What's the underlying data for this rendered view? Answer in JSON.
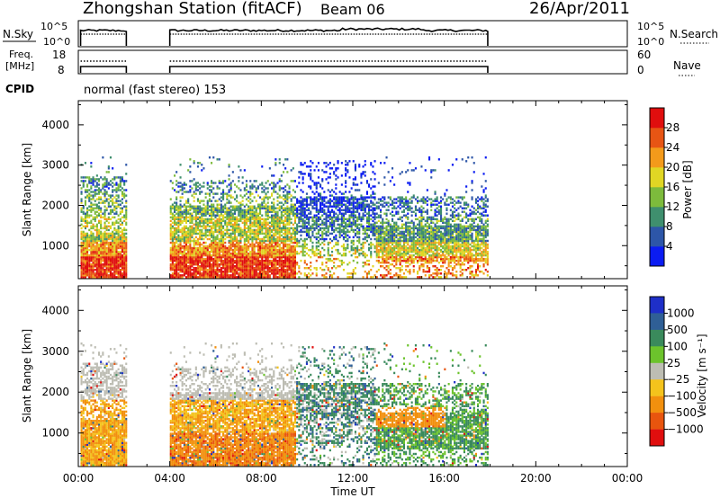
{
  "header": {
    "station": "Zhongshan Station (fitACF)",
    "beam": "Beam 06",
    "date": "26/Apr/2011"
  },
  "chart_data": [
    {
      "type": "line",
      "panel": "nsky-nsearch",
      "left_label": "N.Sky",
      "right_label": "N.Search",
      "left_ticks": [
        "10^5",
        "10^0"
      ],
      "right_ticks": [
        "10^5",
        "10^0"
      ],
      "x_range_hours": [
        0,
        24
      ],
      "data_intervals_hours": [
        [
          0.1,
          2.1
        ],
        [
          4.0,
          17.9
        ]
      ]
    },
    {
      "type": "line",
      "panel": "freq-nave",
      "left_label_lines": [
        "Freq.",
        "[MHz]"
      ],
      "right_label": "Nave",
      "left_ticks": [
        "18",
        "8"
      ],
      "right_ticks": [
        "60",
        "0"
      ],
      "x_range_hours": [
        0,
        24
      ],
      "data_intervals_hours": [
        [
          0.1,
          2.1
        ],
        [
          4.0,
          17.9
        ]
      ]
    },
    {
      "type": "table",
      "panel": "cpid",
      "label": "CPID",
      "text": "normal (fast stereo) 153"
    },
    {
      "type": "heatmap",
      "panel": "power",
      "ylabel": "Slant Range [km]",
      "yticks": [
        1000,
        2000,
        3000,
        4000
      ],
      "ylim": [
        180,
        4600
      ],
      "xlim_hours": [
        0,
        24
      ],
      "colorbar_label": "Power [dB]",
      "colorbar_ticks": [
        "4",
        "8",
        "12",
        "16",
        "20",
        "24",
        "28"
      ],
      "colorbar_colors": [
        "#0b1cf2",
        "#2d56a8",
        "#3f8f6e",
        "#7dbb3c",
        "#e0d624",
        "#f39a1b",
        "#e75514",
        "#e00e0e"
      ],
      "data_intervals_hours": [
        [
          0.1,
          2.1
        ],
        [
          4.0,
          17.9
        ]
      ]
    },
    {
      "type": "heatmap",
      "panel": "velocity",
      "ylabel": "Slant Range [km]",
      "yticks": [
        1000,
        2000,
        3000,
        4000
      ],
      "ylim": [
        180,
        4600
      ],
      "xlim_hours": [
        0,
        24
      ],
      "xticks": [
        "00:00",
        "04:00",
        "08:00",
        "12:00",
        "16:00",
        "20:00",
        "00:00"
      ],
      "xlabel": "Time UT",
      "colorbar_label": "Velocity [m s⁻¹]",
      "colorbar_ticks": [
        "1000",
        "500",
        "100",
        "25",
        "−25",
        "−100",
        "−500",
        "−1000"
      ],
      "colorbar_colors": [
        "#1e2fc8",
        "#2f5f96",
        "#3a8a5c",
        "#6cc32c",
        "#bdbdb3",
        "#f4c31c",
        "#f2900e",
        "#e8550e",
        "#e00e0e"
      ],
      "data_intervals_hours": [
        [
          0.1,
          2.1
        ],
        [
          4.0,
          17.9
        ]
      ]
    }
  ]
}
